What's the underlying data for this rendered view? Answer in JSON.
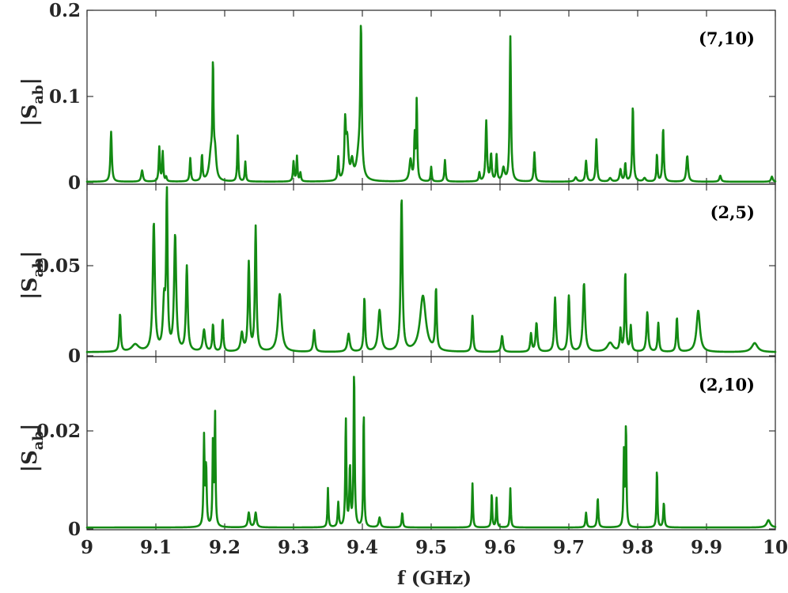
{
  "chart_data": {
    "type": "line",
    "colors": {
      "line": "#138a13",
      "axes": "#262626"
    },
    "xlabel": "f (GHz)",
    "xlim": [
      9,
      10
    ],
    "xticks": [
      "9",
      "9.1",
      "9.2",
      "9.3",
      "9.4",
      "9.5",
      "9.6",
      "9.7",
      "9.8",
      "9.9",
      "10"
    ],
    "grid": false,
    "panels": [
      {
        "tag": "(7,10)",
        "ylabel_main": "|S",
        "ylabel_sub": "ab",
        "ylabel_end": "|",
        "ylim": [
          0,
          0.2
        ],
        "yticks": [
          0,
          0.1,
          0.2
        ],
        "ytick_labels": [
          "0",
          "0.1",
          "0.2"
        ],
        "baseline": 0.001,
        "peaks": [
          [
            9.035,
            0.058,
            0.0012
          ],
          [
            9.08,
            0.013,
            0.0015
          ],
          [
            9.105,
            0.04,
            0.001
          ],
          [
            9.11,
            0.034,
            0.0009
          ],
          [
            9.115,
            0.005,
            0.001
          ],
          [
            9.15,
            0.027,
            0.001
          ],
          [
            9.167,
            0.03,
            0.001
          ],
          [
            9.18,
            0.03,
            0.003
          ],
          [
            9.183,
            0.121,
            0.0009
          ],
          [
            9.186,
            0.03,
            0.002
          ],
          [
            9.219,
            0.054,
            0.0009
          ],
          [
            9.23,
            0.023,
            0.0009
          ],
          [
            9.3,
            0.023,
            0.001
          ],
          [
            9.305,
            0.029,
            0.0009
          ],
          [
            9.31,
            0.01,
            0.001
          ],
          [
            9.365,
            0.027,
            0.001
          ],
          [
            9.375,
            0.062,
            0.0012
          ],
          [
            9.378,
            0.045,
            0.002
          ],
          [
            9.385,
            0.02,
            0.002
          ],
          [
            9.395,
            0.03,
            0.004
          ],
          [
            9.398,
            0.165,
            0.0012
          ],
          [
            9.47,
            0.025,
            0.002
          ],
          [
            9.476,
            0.05,
            0.0009
          ],
          [
            9.479,
            0.093,
            0.0009
          ],
          [
            9.5,
            0.017,
            0.0009
          ],
          [
            9.52,
            0.025,
            0.001
          ],
          [
            9.57,
            0.01,
            0.001
          ],
          [
            9.58,
            0.07,
            0.0012
          ],
          [
            9.587,
            0.031,
            0.0012
          ],
          [
            9.595,
            0.03,
            0.001
          ],
          [
            9.605,
            0.015,
            0.002
          ],
          [
            9.615,
            0.168,
            0.0011
          ],
          [
            9.65,
            0.034,
            0.0011
          ],
          [
            9.71,
            0.005,
            0.002
          ],
          [
            9.725,
            0.024,
            0.0012
          ],
          [
            9.74,
            0.049,
            0.0011
          ],
          [
            9.76,
            0.004,
            0.002
          ],
          [
            9.775,
            0.014,
            0.0015
          ],
          [
            9.782,
            0.021,
            0.001
          ],
          [
            9.793,
            0.088,
            0.0011
          ],
          [
            9.81,
            0.004,
            0.002
          ],
          [
            9.828,
            0.032,
            0.0009
          ],
          [
            9.837,
            0.062,
            0.0011
          ],
          [
            9.872,
            0.03,
            0.0015
          ],
          [
            9.92,
            0.007,
            0.0015
          ],
          [
            9.995,
            0.006,
            0.0015
          ]
        ]
      },
      {
        "tag": "(2,5)",
        "ylabel_main": "|S",
        "ylabel_sub": "ab",
        "ylabel_end": "|",
        "ylim": [
          0,
          0.093
        ],
        "yticks": [
          0,
          0.05
        ],
        "ytick_labels": [
          "0",
          "0.05"
        ],
        "baseline": 0.002,
        "peaks": [
          [
            9.048,
            0.021,
            0.0012
          ],
          [
            9.07,
            0.004,
            0.006
          ],
          [
            9.097,
            0.071,
            0.0018
          ],
          [
            9.112,
            0.026,
            0.002
          ],
          [
            9.116,
            0.085,
            0.0012
          ],
          [
            9.128,
            0.064,
            0.0018
          ],
          [
            9.145,
            0.047,
            0.0015
          ],
          [
            9.17,
            0.012,
            0.002
          ],
          [
            9.183,
            0.015,
            0.0012
          ],
          [
            9.197,
            0.018,
            0.0012
          ],
          [
            9.225,
            0.01,
            0.002
          ],
          [
            9.235,
            0.049,
            0.0014
          ],
          [
            9.245,
            0.069,
            0.0013
          ],
          [
            9.28,
            0.032,
            0.003
          ],
          [
            9.33,
            0.012,
            0.0015
          ],
          [
            9.38,
            0.01,
            0.002
          ],
          [
            9.403,
            0.03,
            0.0012
          ],
          [
            9.425,
            0.023,
            0.0025
          ],
          [
            9.457,
            0.085,
            0.0015
          ],
          [
            9.488,
            0.031,
            0.005
          ],
          [
            9.507,
            0.034,
            0.0012
          ],
          [
            9.56,
            0.02,
            0.0012
          ],
          [
            9.603,
            0.009,
            0.0015
          ],
          [
            9.645,
            0.01,
            0.0013
          ],
          [
            9.653,
            0.016,
            0.0015
          ],
          [
            9.68,
            0.03,
            0.0014
          ],
          [
            9.7,
            0.031,
            0.0015
          ],
          [
            9.722,
            0.038,
            0.0018
          ],
          [
            9.76,
            0.005,
            0.005
          ],
          [
            9.775,
            0.012,
            0.0012
          ],
          [
            9.782,
            0.044,
            0.0011
          ],
          [
            9.79,
            0.014,
            0.0012
          ],
          [
            9.814,
            0.022,
            0.0015
          ],
          [
            9.83,
            0.016,
            0.0012
          ],
          [
            9.857,
            0.019,
            0.0012
          ],
          [
            9.888,
            0.023,
            0.003
          ],
          [
            9.97,
            0.005,
            0.005
          ]
        ]
      },
      {
        "tag": "(2,10)",
        "ylabel_main": "|S",
        "ylabel_sub": "ab",
        "ylabel_end": "|",
        "ylim": [
          0,
          0.035
        ],
        "yticks": [
          0,
          0.02
        ],
        "ytick_labels": [
          "0",
          "0.02"
        ],
        "baseline": 0.0003,
        "peaks": [
          [
            9.17,
            0.018,
            0.0009
          ],
          [
            9.173,
            0.012,
            0.001
          ],
          [
            9.183,
            0.018,
            0.0008
          ],
          [
            9.186,
            0.023,
            0.0008
          ],
          [
            9.235,
            0.003,
            0.0015
          ],
          [
            9.245,
            0.003,
            0.0015
          ],
          [
            9.35,
            0.008,
            0.0008
          ],
          [
            9.365,
            0.005,
            0.001
          ],
          [
            9.376,
            0.022,
            0.0009
          ],
          [
            9.382,
            0.012,
            0.001
          ],
          [
            9.388,
            0.032,
            0.0009
          ],
          [
            9.402,
            0.024,
            0.0008
          ],
          [
            9.425,
            0.002,
            0.0015
          ],
          [
            9.458,
            0.003,
            0.001
          ],
          [
            9.56,
            0.009,
            0.0008
          ],
          [
            9.588,
            0.007,
            0.0008
          ],
          [
            9.595,
            0.006,
            0.0008
          ],
          [
            9.615,
            0.008,
            0.0008
          ],
          [
            9.725,
            0.003,
            0.001
          ],
          [
            9.742,
            0.006,
            0.001
          ],
          [
            9.78,
            0.015,
            0.0008
          ],
          [
            9.783,
            0.021,
            0.0008
          ],
          [
            9.828,
            0.012,
            0.0008
          ],
          [
            9.838,
            0.005,
            0.001
          ],
          [
            9.99,
            0.0015,
            0.003
          ]
        ]
      }
    ]
  }
}
